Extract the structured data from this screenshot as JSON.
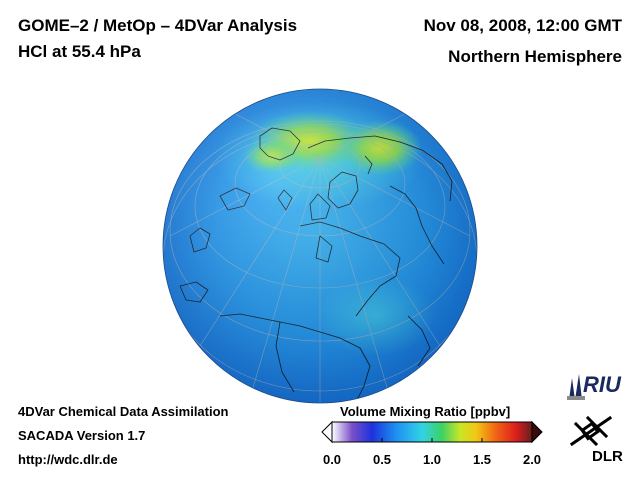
{
  "header": {
    "title_line1": "GOME–2 / MetOp – 4DVar Analysis",
    "title_line2": "HCl at 55.4 hPa",
    "date": "Nov 08, 2008, 12:00 GMT",
    "region": "Northern Hemisphere"
  },
  "footer": {
    "line1": "4DVar Chemical Data Assimilation",
    "line2": "SACADA Version 1.7",
    "line3": "http://wdc.dlr.de"
  },
  "colorbar": {
    "title": "Volume Mixing Ratio [ppbv]",
    "ticks": [
      "0.0",
      "0.5",
      "1.0",
      "1.5",
      "2.0"
    ],
    "range": [
      0.0,
      2.0
    ],
    "colors": [
      "#ffffff",
      "#7a50c8",
      "#1e32dc",
      "#1e90f0",
      "#32d2e6",
      "#3cd264",
      "#c8e628",
      "#f0c814",
      "#f06414",
      "#dc1e1e",
      "#641e1e"
    ]
  },
  "logos": {
    "riu": "RIU",
    "dlr": "DLR"
  }
}
